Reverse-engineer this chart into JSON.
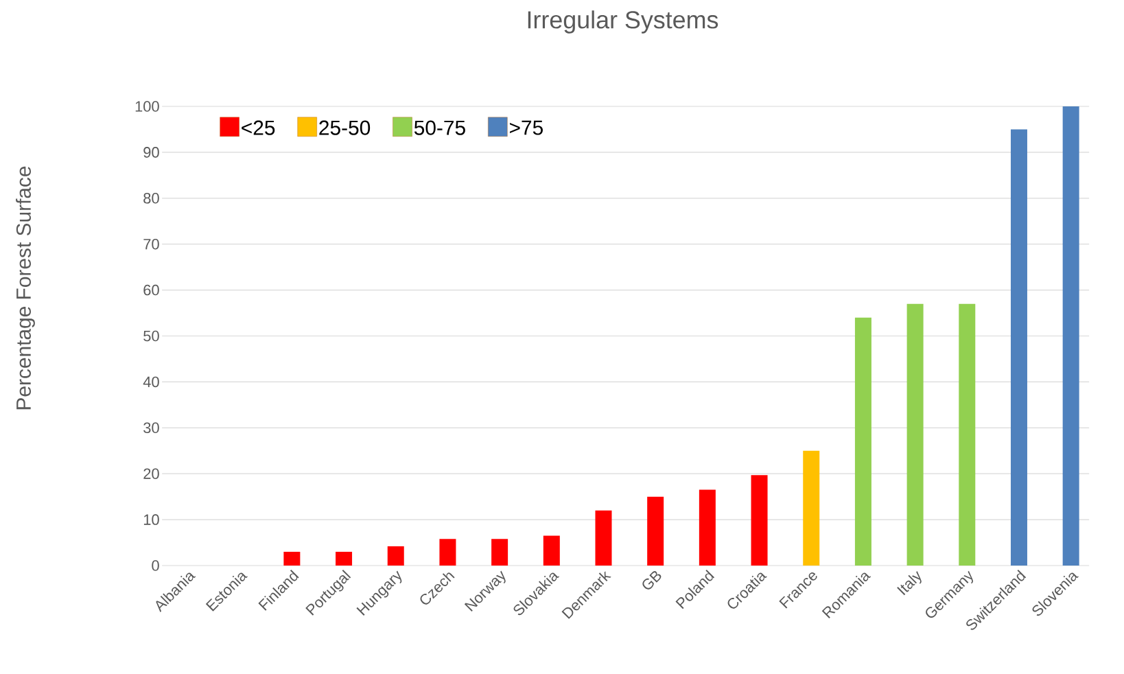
{
  "chart_data": {
    "type": "bar",
    "title": "Irregular Systems",
    "ylabel": "Percentage Forest Surface",
    "categories": [
      "Albania",
      "Estonia",
      "Finland",
      "Portugal",
      "Hungary",
      "Czech",
      "Norway",
      "Slovakia",
      "Denmark",
      "GB",
      "Poland",
      "Croatia",
      "France",
      "Romania",
      "Italy",
      "Germany",
      "Switzerland",
      "Slovenia"
    ],
    "series": [
      {
        "name": "<25",
        "color": "#ff0000",
        "values": [
          0,
          0,
          3,
          3,
          4.2,
          5.8,
          5.8,
          6.5,
          12,
          15,
          16.5,
          19.7,
          null,
          null,
          null,
          null,
          null,
          null
        ]
      },
      {
        "name": "25-50",
        "color": "#ffc000",
        "values": [
          null,
          null,
          null,
          null,
          null,
          null,
          null,
          null,
          null,
          null,
          null,
          null,
          25,
          null,
          null,
          null,
          null,
          null
        ]
      },
      {
        "name": "50-75",
        "color": "#92d050",
        "values": [
          null,
          null,
          null,
          null,
          null,
          null,
          null,
          null,
          null,
          null,
          null,
          null,
          null,
          54,
          57,
          57,
          null,
          null
        ]
      },
      {
        "name": ">75",
        "color": "#4f81bd",
        "values": [
          null,
          null,
          null,
          null,
          null,
          null,
          null,
          null,
          null,
          null,
          null,
          null,
          null,
          null,
          null,
          null,
          95,
          100
        ]
      }
    ],
    "ylim": [
      0,
      100
    ],
    "yticks": [
      0,
      10,
      20,
      30,
      40,
      50,
      60,
      70,
      80,
      90,
      100
    ],
    "grid": "y",
    "legend": "top left"
  }
}
